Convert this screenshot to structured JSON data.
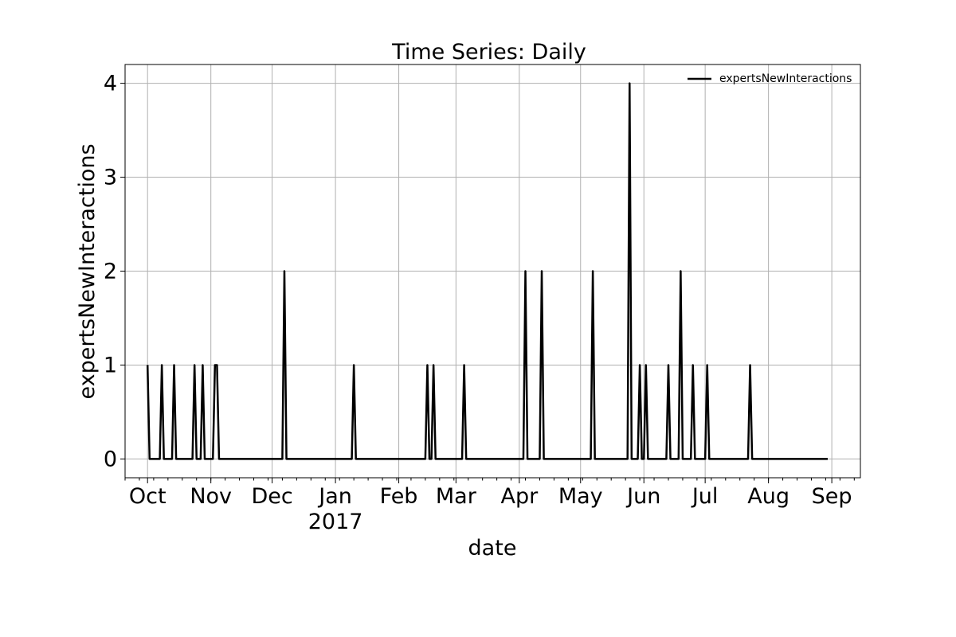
{
  "chart_data": {
    "type": "line",
    "title": "Time Series: Daily",
    "xlabel": "date",
    "ylabel": "expertsNewInteractions",
    "x_axis": {
      "type": "date",
      "range": [
        "2016-09-20",
        "2017-09-15"
      ],
      "ticks": [
        {
          "date": "2016-10-01",
          "label": "Oct"
        },
        {
          "date": "2016-11-01",
          "label": "Nov"
        },
        {
          "date": "2016-12-01",
          "label": "Dec"
        },
        {
          "date": "2017-01-01",
          "label": "Jan",
          "sublabel": "2017"
        },
        {
          "date": "2017-02-01",
          "label": "Feb"
        },
        {
          "date": "2017-03-01",
          "label": "Mar"
        },
        {
          "date": "2017-04-01",
          "label": "Apr"
        },
        {
          "date": "2017-05-01",
          "label": "May"
        },
        {
          "date": "2017-06-01",
          "label": "Jun"
        },
        {
          "date": "2017-07-01",
          "label": "Jul"
        },
        {
          "date": "2017-08-01",
          "label": "Aug"
        },
        {
          "date": "2017-09-01",
          "label": "Sep"
        }
      ]
    },
    "y_axis": {
      "range": [
        -0.2,
        4.2
      ],
      "ticks": [
        0,
        1,
        2,
        3,
        4
      ]
    },
    "grid": true,
    "legend": {
      "position": "top-right",
      "entries": [
        "expertsNewInteractions"
      ]
    },
    "series": [
      {
        "name": "expertsNewInteractions",
        "color": "#000000",
        "start": "2016-10-01",
        "end": "2017-08-30",
        "baseline": 0,
        "nonzero": [
          {
            "date": "2016-10-01",
            "y": 1
          },
          {
            "date": "2016-10-08",
            "y": 1
          },
          {
            "date": "2016-10-14",
            "y": 1
          },
          {
            "date": "2016-10-24",
            "y": 1
          },
          {
            "date": "2016-10-28",
            "y": 1
          },
          {
            "date": "2016-11-03",
            "y": 1
          },
          {
            "date": "2016-11-04",
            "y": 1
          },
          {
            "date": "2016-12-07",
            "y": 2
          },
          {
            "date": "2017-01-10",
            "y": 1
          },
          {
            "date": "2017-02-15",
            "y": 1
          },
          {
            "date": "2017-02-18",
            "y": 1
          },
          {
            "date": "2017-03-05",
            "y": 1
          },
          {
            "date": "2017-04-04",
            "y": 2
          },
          {
            "date": "2017-04-12",
            "y": 2
          },
          {
            "date": "2017-05-07",
            "y": 2
          },
          {
            "date": "2017-05-25",
            "y": 4
          },
          {
            "date": "2017-05-30",
            "y": 1
          },
          {
            "date": "2017-06-02",
            "y": 1
          },
          {
            "date": "2017-06-13",
            "y": 1
          },
          {
            "date": "2017-06-19",
            "y": 2
          },
          {
            "date": "2017-06-25",
            "y": 1
          },
          {
            "date": "2017-07-02",
            "y": 1
          },
          {
            "date": "2017-07-23",
            "y": 1
          }
        ]
      }
    ]
  }
}
